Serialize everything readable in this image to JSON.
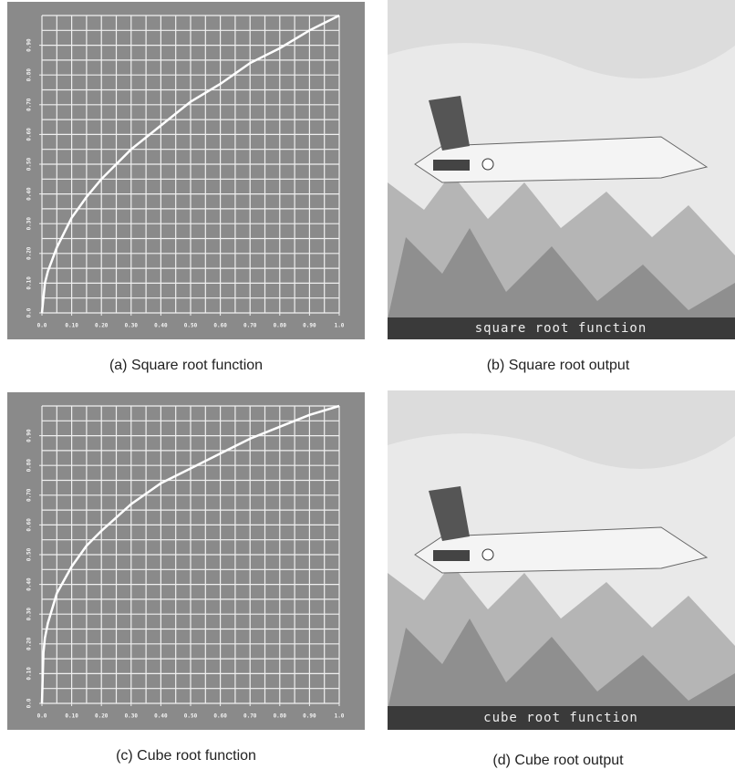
{
  "chart_data": [
    {
      "type": "line",
      "caption": "(a) Square root function",
      "x": [
        0,
        0.01,
        0.02,
        0.05,
        0.1,
        0.15,
        0.2,
        0.3,
        0.4,
        0.5,
        0.6,
        0.7,
        0.8,
        0.9,
        1.0
      ],
      "series": [
        {
          "color": "#ffffff",
          "values": [
            0,
            0.1,
            0.14,
            0.22,
            0.32,
            0.39,
            0.45,
            0.55,
            0.63,
            0.71,
            0.77,
            0.84,
            0.89,
            0.95,
            1.0
          ]
        }
      ],
      "xlim": [
        0,
        1
      ],
      "ylim": [
        0,
        1
      ],
      "xticks": [
        {
          "value": 0,
          "label": "0.0"
        },
        {
          "value": 0.1,
          "label": "0.10"
        },
        {
          "value": 0.2,
          "label": "0.20"
        },
        {
          "value": 0.3,
          "label": "0.30"
        },
        {
          "value": 0.4,
          "label": "0.40"
        },
        {
          "value": 0.5,
          "label": "0.50"
        },
        {
          "value": 0.6,
          "label": "0.60"
        },
        {
          "value": 0.7,
          "label": "0.70"
        },
        {
          "value": 0.8,
          "label": "0.80"
        },
        {
          "value": 0.9,
          "label": "0.90"
        },
        {
          "value": 1,
          "label": "1.0"
        }
      ],
      "yticks": [
        {
          "value": 0,
          "label": "0.0"
        },
        {
          "value": 0.1,
          "label": "0.10"
        },
        {
          "value": 0.2,
          "label": "0.20"
        },
        {
          "value": 0.3,
          "label": "0.30"
        },
        {
          "value": 0.4,
          "label": "0.40"
        },
        {
          "value": 0.5,
          "label": "0.50"
        },
        {
          "value": 0.6,
          "label": "0.60"
        },
        {
          "value": 0.7,
          "label": "0.70"
        },
        {
          "value": 0.8,
          "label": "0.80"
        },
        {
          "value": 0.9,
          "label": "0.90"
        }
      ],
      "grid": true,
      "xgrid": [
        0,
        0.05,
        0.1,
        0.15,
        0.2,
        0.25,
        0.3,
        0.35,
        0.4,
        0.45,
        0.5,
        0.55,
        0.6,
        0.65,
        0.7,
        0.75,
        0.8,
        0.85,
        0.9,
        0.95,
        1
      ],
      "ygrid": [
        0,
        0.05,
        0.1,
        0.15,
        0.2,
        0.25,
        0.3,
        0.35,
        0.4,
        0.45,
        0.5,
        0.55,
        0.6,
        0.65,
        0.7,
        0.75,
        0.8,
        0.85,
        0.9,
        0.95,
        1
      ]
    },
    {
      "type": "line",
      "caption": "(c) Cube root function",
      "x": [
        0,
        0.005,
        0.01,
        0.02,
        0.05,
        0.1,
        0.15,
        0.2,
        0.3,
        0.4,
        0.5,
        0.6,
        0.7,
        0.8,
        0.9,
        1.0
      ],
      "series": [
        {
          "color": "#ffffff",
          "values": [
            0,
            0.17,
            0.22,
            0.27,
            0.37,
            0.46,
            0.53,
            0.58,
            0.67,
            0.74,
            0.79,
            0.84,
            0.89,
            0.93,
            0.97,
            1.0
          ]
        }
      ],
      "xlim": [
        0,
        1
      ],
      "ylim": [
        0,
        1
      ],
      "xticks": [
        {
          "value": 0,
          "label": "0.0"
        },
        {
          "value": 0.1,
          "label": "0.10"
        },
        {
          "value": 0.2,
          "label": "0.20"
        },
        {
          "value": 0.3,
          "label": "0.30"
        },
        {
          "value": 0.4,
          "label": "0.40"
        },
        {
          "value": 0.5,
          "label": "0.50"
        },
        {
          "value": 0.6,
          "label": "0.60"
        },
        {
          "value": 0.7,
          "label": "0.70"
        },
        {
          "value": 0.8,
          "label": "0.80"
        },
        {
          "value": 0.9,
          "label": "0.90"
        },
        {
          "value": 1,
          "label": "1.0"
        }
      ],
      "yticks": [
        {
          "value": 0,
          "label": "0.0"
        },
        {
          "value": 0.1,
          "label": "0.10"
        },
        {
          "value": 0.2,
          "label": "0.20"
        },
        {
          "value": 0.3,
          "label": "0.30"
        },
        {
          "value": 0.4,
          "label": "0.40"
        },
        {
          "value": 0.5,
          "label": "0.50"
        },
        {
          "value": 0.6,
          "label": "0.60"
        },
        {
          "value": 0.7,
          "label": "0.70"
        },
        {
          "value": 0.8,
          "label": "0.80"
        },
        {
          "value": 0.9,
          "label": "0.90"
        }
      ],
      "grid": true,
      "xgrid": [
        0,
        0.05,
        0.1,
        0.15,
        0.2,
        0.25,
        0.3,
        0.35,
        0.4,
        0.45,
        0.5,
        0.55,
        0.6,
        0.65,
        0.7,
        0.75,
        0.8,
        0.85,
        0.9,
        0.95,
        1
      ],
      "ygrid": [
        0,
        0.05,
        0.1,
        0.15,
        0.2,
        0.25,
        0.3,
        0.35,
        0.4,
        0.45,
        0.5,
        0.55,
        0.6,
        0.65,
        0.7,
        0.75,
        0.8,
        0.85,
        0.9,
        0.95,
        1
      ]
    }
  ],
  "images": [
    {
      "overlay": "square root function",
      "caption": "(b) Square root output"
    },
    {
      "overlay": "cube root function",
      "caption": "(d) Cube root output"
    }
  ]
}
